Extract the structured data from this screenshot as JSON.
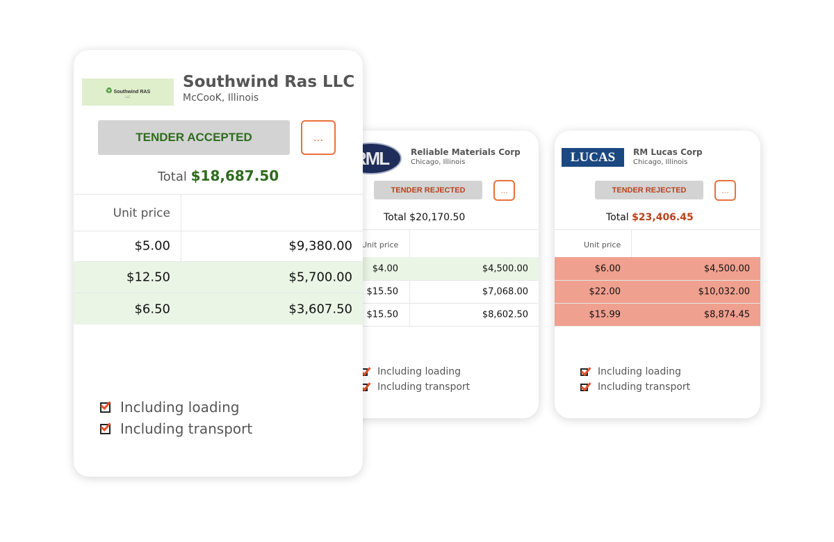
{
  "cards": [
    {
      "logo_text": "Southwind RAS",
      "logo_sub": "LLC",
      "name": "Southwind Ras LLC",
      "location": "McCooK, Illinois",
      "status": "TENDER ACCEPTED",
      "more": "...",
      "total_label": "Total",
      "total": "$18,687.50",
      "col_header": "Unit price",
      "rows": [
        {
          "unit": "$5.00",
          "amount": "$9,380.00"
        },
        {
          "unit": "$12.50",
          "amount": "$5,700.00"
        },
        {
          "unit": "$6.50",
          "amount": "$3,607.50"
        }
      ],
      "checks": [
        "Including loading",
        "Including transport"
      ]
    },
    {
      "logo_text": "RML",
      "name": "Reliable Materials Corp",
      "location": "Chicago, Illinois",
      "status": "TENDER REJECTED",
      "more": "...",
      "total_label": "Total",
      "total": "$20,170.50",
      "col_header": "Unit price",
      "rows": [
        {
          "unit": "$4.00",
          "amount": "$4,500.00"
        },
        {
          "unit": "$15.50",
          "amount": "$7,068.00"
        },
        {
          "unit": "$15.50",
          "amount": "$8,602.50"
        }
      ],
      "checks": [
        "Including loading",
        "Including transport"
      ]
    },
    {
      "logo_text": "LUCAS",
      "name": "RM Lucas Corp",
      "location": "Chicago, Illinois",
      "status": "TENDER REJECTED",
      "more": "...",
      "total_label": "Total",
      "total": "$23,406.45",
      "col_header": "Unit price",
      "rows": [
        {
          "unit": "$6.00",
          "amount": "$4,500.00"
        },
        {
          "unit": "$22.00",
          "amount": "$10,032.00"
        },
        {
          "unit": "$15.99",
          "amount": "$8,874.45"
        }
      ],
      "checks": [
        "Including loading",
        "Including transport"
      ]
    }
  ],
  "colors": {
    "accepted": "#2f6b1e",
    "rejected": "#b8421a",
    "accent": "#e8703a",
    "green_row": "#eaf5e6",
    "red_row": "#f0a08f"
  }
}
